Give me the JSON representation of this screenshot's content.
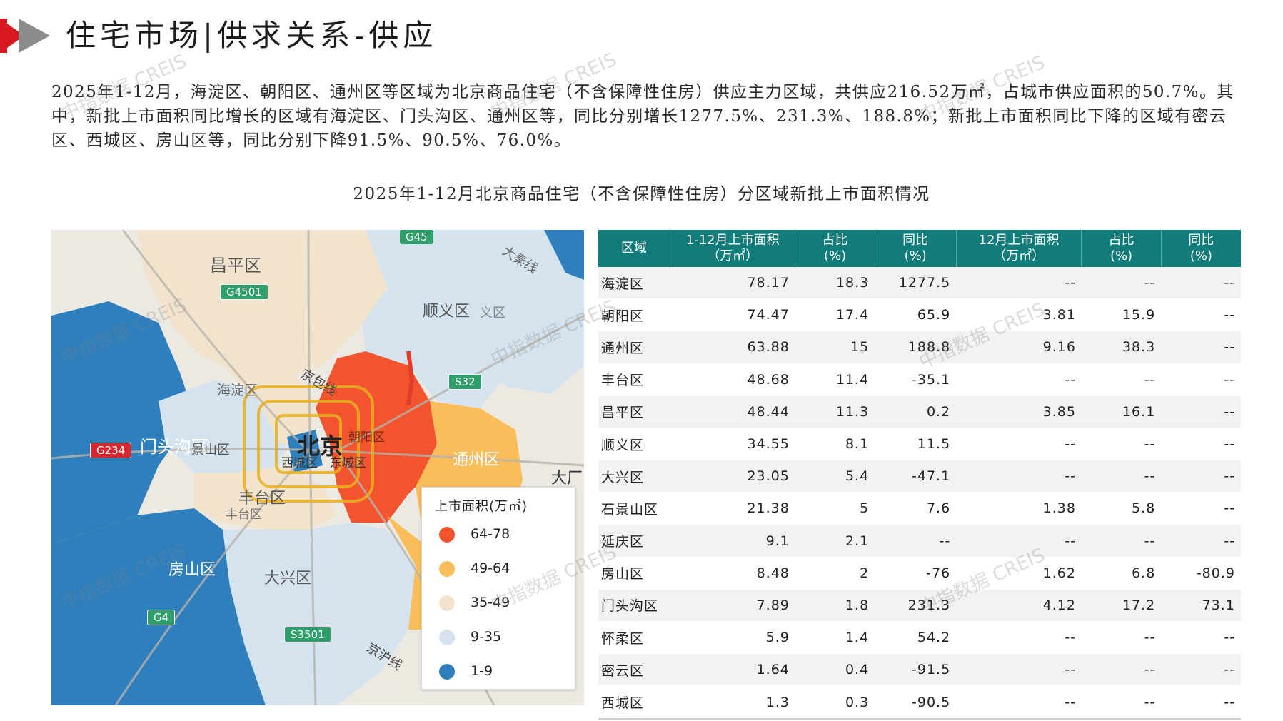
{
  "header": {
    "title": "住宅市场|供求关系-供应"
  },
  "intro": "2025年1-12月，海淀区、朝阳区、通州区等区域为北京商品住宅（不含保障性住房）供应主力区域，共供应216.52万㎡，占城市供应面积的50.7%。其中，新批上市面积同比增长的区域有海淀区、门头沟区、通州区等，同比分别增长1277.5%、231.3%、188.8%；新批上市面积同比下降的区域有密云区、西城区、房山区等，同比分别下降91.5%、90.5%、76.0%。",
  "chart_title": "2025年1-12月北京商品住宅（不含保障性住房）分区域新批上市面积情况",
  "watermark": "中指数据 CREIS",
  "map": {
    "labels": {
      "changping": "昌平区",
      "shunyi": "顺义区",
      "shunyi_small": "义区",
      "haidian": "海淀区",
      "mentougou": "门头沟区",
      "shijingshan": "景山区",
      "beijing": "北京",
      "xicheng": "西城区",
      "dongcheng": "东城区",
      "chaoyang": "朝阳区",
      "tongzhou": "通州区",
      "fengtai": "丰台区",
      "fengtai_small": "丰台区",
      "fangshan": "房山区",
      "daxing": "大兴区",
      "daxing_edge": "大厂",
      "dagao": "大秦线",
      "jingbao": "京包线",
      "jinghu": "京沪线"
    },
    "roads": [
      "G45",
      "G4501",
      "S32",
      "G234",
      "G4",
      "S3501"
    ],
    "legend": {
      "title": "上市面积(万㎡)",
      "items": [
        {
          "label": "64-78",
          "color": "#f2542d"
        },
        {
          "label": "49-64",
          "color": "#f9bd59"
        },
        {
          "label": "35-49",
          "color": "#f2e3cc"
        },
        {
          "label": "9-35",
          "color": "#d4e3ee"
        },
        {
          "label": "1-9",
          "color": "#2f7fbd"
        }
      ]
    }
  },
  "table": {
    "headers": [
      {
        "l1": "区域",
        "l2": ""
      },
      {
        "l1": "1-12月上市面积",
        "l2": "（万㎡）"
      },
      {
        "l1": "占比",
        "l2": "(%)"
      },
      {
        "l1": "同比",
        "l2": "(%)"
      },
      {
        "l1": "12月上市面积",
        "l2": "（万㎡）"
      },
      {
        "l1": "占比",
        "l2": "(%)"
      },
      {
        "l1": "同比",
        "l2": "(%)"
      }
    ],
    "rows": [
      [
        "海淀区",
        "78.17",
        "18.3",
        "1277.5",
        "--",
        "--",
        "--"
      ],
      [
        "朝阳区",
        "74.47",
        "17.4",
        "65.9",
        "3.81",
        "15.9",
        "--"
      ],
      [
        "通州区",
        "63.88",
        "15",
        "188.8",
        "9.16",
        "38.3",
        "--"
      ],
      [
        "丰台区",
        "48.68",
        "11.4",
        "-35.1",
        "--",
        "--",
        "--"
      ],
      [
        "昌平区",
        "48.44",
        "11.3",
        "0.2",
        "3.85",
        "16.1",
        "--"
      ],
      [
        "顺义区",
        "34.55",
        "8.1",
        "11.5",
        "--",
        "--",
        "--"
      ],
      [
        "大兴区",
        "23.05",
        "5.4",
        "-47.1",
        "--",
        "--",
        "--"
      ],
      [
        "石景山区",
        "21.38",
        "5",
        "7.6",
        "1.38",
        "5.8",
        "--"
      ],
      [
        "延庆区",
        "9.1",
        "2.1",
        "--",
        "--",
        "--",
        "--"
      ],
      [
        "房山区",
        "8.48",
        "2",
        "-76",
        "1.62",
        "6.8",
        "-80.9"
      ],
      [
        "门头沟区",
        "7.89",
        "1.8",
        "231.3",
        "4.12",
        "17.2",
        "73.1"
      ],
      [
        "怀柔区",
        "5.9",
        "1.4",
        "54.2",
        "--",
        "--",
        "--"
      ],
      [
        "密云区",
        "1.64",
        "0.4",
        "-91.5",
        "--",
        "--",
        "--"
      ],
      [
        "西城区",
        "1.3",
        "0.3",
        "-90.5",
        "--",
        "--",
        "--"
      ]
    ]
  }
}
